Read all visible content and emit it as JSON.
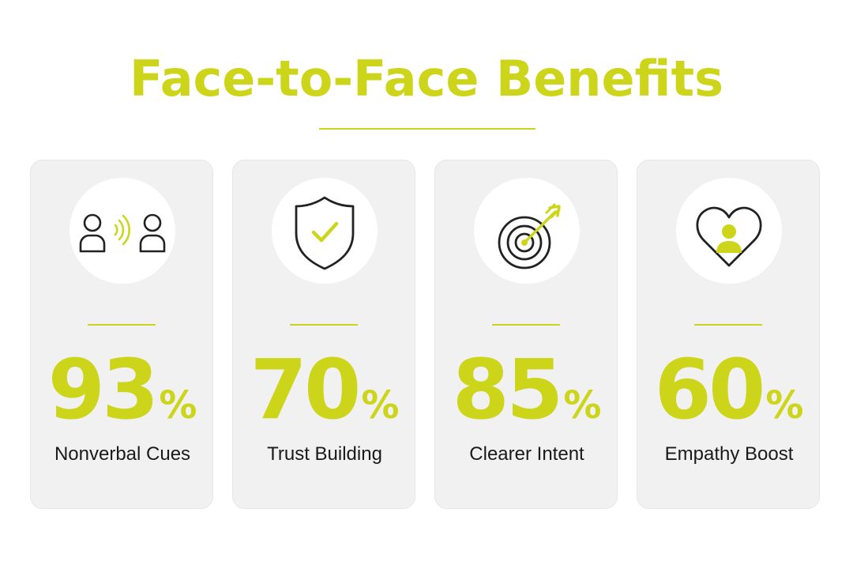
{
  "title": "Face-to-Face Benefits",
  "colors": {
    "accent": "#cdd51b",
    "card_bg": "#f1f1f1",
    "text": "#1a1a1a",
    "icon_stroke": "#222222"
  },
  "cards": [
    {
      "icon": "conversation-people-icon",
      "value": "93",
      "unit": "%",
      "label": "Nonverbal Cues"
    },
    {
      "icon": "shield-check-icon",
      "value": "70",
      "unit": "%",
      "label": "Trust Building"
    },
    {
      "icon": "target-arrow-icon",
      "value": "85",
      "unit": "%",
      "label": "Clearer Intent"
    },
    {
      "icon": "heart-person-icon",
      "value": "60",
      "unit": "%",
      "label": "Empathy Boost"
    }
  ]
}
